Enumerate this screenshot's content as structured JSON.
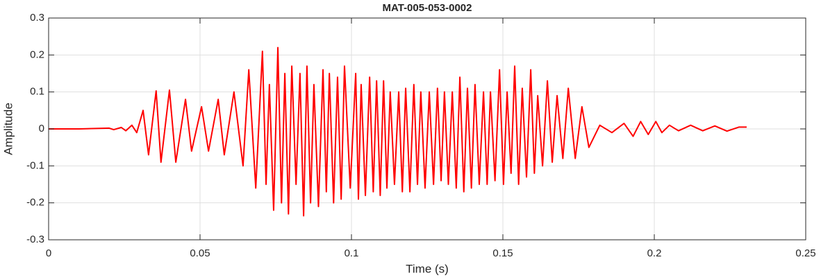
{
  "chart_data": {
    "type": "line",
    "title": "MAT-005-053-0002",
    "xlabel": "Time (s)",
    "ylabel": "Amplitude",
    "x": [
      0,
      0.01,
      0.02,
      0.0215,
      0.024,
      0.0255,
      0.0275,
      0.0291,
      0.0312,
      0.033,
      0.0355,
      0.0371,
      0.0399,
      0.042,
      0.0452,
      0.0472,
      0.0505,
      0.0528,
      0.056,
      0.058,
      0.0612,
      0.0642,
      0.0661,
      0.0684,
      0.0706,
      0.0718,
      0.0729,
      0.0743,
      0.0757,
      0.0769,
      0.078,
      0.0792,
      0.0803,
      0.0817,
      0.083,
      0.0842,
      0.0853,
      0.0865,
      0.0876,
      0.0891,
      0.0906,
      0.0917,
      0.0927,
      0.0941,
      0.0954,
      0.0966,
      0.0977,
      0.0996,
      0.1014,
      0.1023,
      0.1032,
      0.1046,
      0.106,
      0.1072,
      0.1083,
      0.1095,
      0.1106,
      0.1117,
      0.1128,
      0.1142,
      0.1156,
      0.1168,
      0.1179,
      0.1193,
      0.1206,
      0.1218,
      0.1229,
      0.1243,
      0.1257,
      0.1271,
      0.1284,
      0.1296,
      0.1307,
      0.132,
      0.1333,
      0.1346,
      0.1358,
      0.1371,
      0.1383,
      0.1396,
      0.1408,
      0.1422,
      0.1436,
      0.1448,
      0.1459,
      0.1474,
      0.1489,
      0.1502,
      0.1514,
      0.1527,
      0.1539,
      0.1552,
      0.1564,
      0.1578,
      0.1592,
      0.1604,
      0.1615,
      0.1631,
      0.1647,
      0.1663,
      0.1679,
      0.1698,
      0.1716,
      0.1739,
      0.1761,
      0.1784,
      0.182,
      0.186,
      0.19,
      0.193,
      0.1955,
      0.198,
      0.2005,
      0.2025,
      0.205,
      0.208,
      0.212,
      0.216,
      0.22,
      0.224,
      0.228,
      0.2305
    ],
    "values": [
      0,
      0,
      0.002,
      -0.002,
      0.004,
      -0.005,
      0.01,
      -0.01,
      0.05,
      -0.07,
      0.103,
      -0.09,
      0.105,
      -0.09,
      0.08,
      -0.06,
      0.06,
      -0.06,
      0.08,
      -0.07,
      0.1,
      -0.1,
      0.16,
      -0.16,
      0.21,
      -0.15,
      0.12,
      -0.22,
      0.22,
      -0.2,
      0.15,
      -0.23,
      0.17,
      -0.15,
      0.15,
      -0.235,
      0.17,
      -0.2,
      0.12,
      -0.21,
      0.16,
      -0.17,
      0.15,
      -0.2,
      0.14,
      -0.19,
      0.17,
      -0.16,
      0.15,
      -0.19,
      0.12,
      -0.18,
      0.14,
      -0.17,
      0.13,
      -0.18,
      0.13,
      -0.16,
      0.1,
      -0.15,
      0.1,
      -0.17,
      0.11,
      -0.17,
      0.12,
      -0.15,
      0.1,
      -0.16,
      0.1,
      -0.15,
      0.11,
      -0.14,
      0.1,
      -0.15,
      0.1,
      -0.16,
      0.14,
      -0.17,
      0.11,
      -0.16,
      0.12,
      -0.15,
      0.1,
      -0.15,
      0.1,
      -0.14,
      0.16,
      -0.15,
      0.1,
      -0.12,
      0.17,
      -0.15,
      0.11,
      -0.13,
      0.16,
      -0.12,
      0.09,
      -0.1,
      0.13,
      -0.09,
      0.09,
      -0.08,
      0.11,
      -0.08,
      0.06,
      -0.05,
      0.01,
      -0.01,
      0.015,
      -0.02,
      0.02,
      -0.015,
      0.02,
      -0.01,
      0.01,
      -0.005,
      0.01,
      -0.005,
      0.008,
      -0.006,
      0.005,
      0.005
    ],
    "color": "#ff0000",
    "xlim": [
      0,
      0.25
    ],
    "xticks": [
      0,
      0.05,
      0.1,
      0.15,
      0.2,
      0.25
    ],
    "ylim": [
      -0.3,
      0.3
    ],
    "yticks": [
      -0.3,
      -0.2,
      -0.1,
      0,
      0.1,
      0.2,
      0.3
    ],
    "grid": true
  }
}
